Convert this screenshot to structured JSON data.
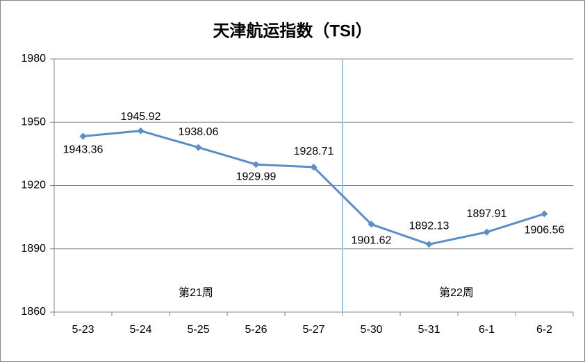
{
  "chart_data": {
    "type": "line",
    "title": "天津航运指数（TSI）",
    "categories": [
      "5-23",
      "5-24",
      "5-25",
      "5-26",
      "5-27",
      "5-30",
      "5-31",
      "6-1",
      "6-2"
    ],
    "series": [
      {
        "name": "TSI",
        "color": "#5b8ec6",
        "values": [
          1943.36,
          1945.92,
          1938.06,
          1929.99,
          1928.71,
          1901.62,
          1892.13,
          1897.91,
          1906.56
        ]
      }
    ],
    "ylim": [
      1860,
      1980
    ],
    "yticks": [
      1860,
      1890,
      1920,
      1950,
      1980
    ],
    "grid": true,
    "annotations": [
      "第21周",
      "第22周"
    ]
  }
}
